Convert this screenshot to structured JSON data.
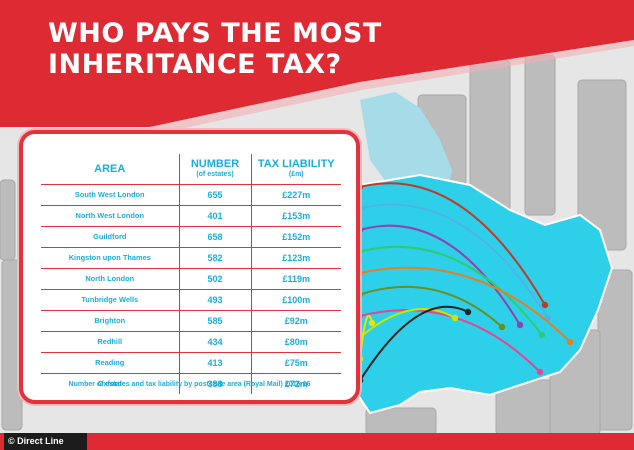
{
  "header": {
    "title": "WHO PAYS THE MOST INHERITANCE TAX?"
  },
  "table": {
    "columns": [
      {
        "label": "AREA",
        "sub": ""
      },
      {
        "label": "NUMBER",
        "sub": "(of estates)"
      },
      {
        "label": "TAX LIABILITY",
        "sub": "(£m)"
      }
    ],
    "rows": [
      {
        "area": "South West London",
        "number": "655",
        "tax": "£227m",
        "color": "#c0392b"
      },
      {
        "area": "North West London",
        "number": "401",
        "tax": "£153m",
        "color": "#4fb3e6"
      },
      {
        "area": "Guildford",
        "number": "658",
        "tax": "£152m",
        "color": "#8e44ad"
      },
      {
        "area": "Kingston upon Thames",
        "number": "582",
        "tax": "£123m",
        "color": "#2ecc71"
      },
      {
        "area": "North London",
        "number": "502",
        "tax": "£119m",
        "color": "#e67e22"
      },
      {
        "area": "Tunbridge Wells",
        "number": "493",
        "tax": "£100m",
        "color": "#6b8e23"
      },
      {
        "area": "Brighton",
        "number": "585",
        "tax": "£92m",
        "color": "#e84393"
      },
      {
        "area": "Redhill",
        "number": "434",
        "tax": "£80m",
        "color": "#c8e600"
      },
      {
        "area": "Reading",
        "number": "413",
        "tax": "£75m",
        "color": "#e5e500"
      },
      {
        "area": "Oxford",
        "number": "388",
        "tax": "£72m",
        "color": "#222222"
      }
    ],
    "source": "Number of estates and tax liability by postcode area (Royal Mail) 2015-16"
  },
  "footer": {
    "brand": "© Direct Line"
  },
  "colors": {
    "accent": "#e2323c",
    "cyan": "#19aee0",
    "map": "#2dd0e8"
  }
}
